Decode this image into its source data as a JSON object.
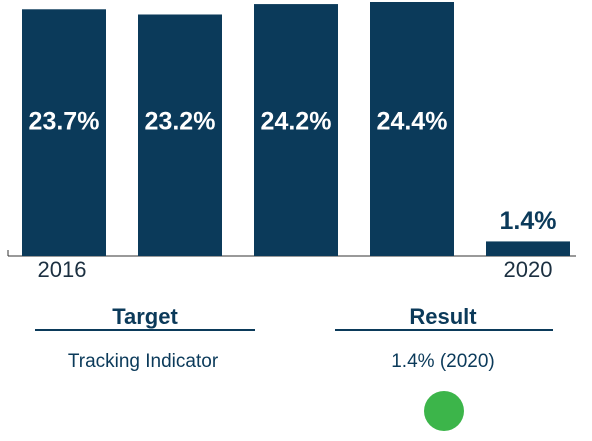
{
  "chart_data": {
    "type": "bar",
    "categories": [
      "2016",
      null,
      null,
      null,
      "2020"
    ],
    "values": [
      23.7,
      23.2,
      24.2,
      24.4,
      1.4
    ],
    "value_labels": [
      "23.7%",
      "23.2%",
      "24.2%",
      "24.4%",
      "1.4%"
    ],
    "color": "#0b3a5a"
  },
  "target": {
    "heading": "Target",
    "text": "Tracking Indicator"
  },
  "result": {
    "heading": "Result",
    "text": "1.4% (2020)"
  }
}
